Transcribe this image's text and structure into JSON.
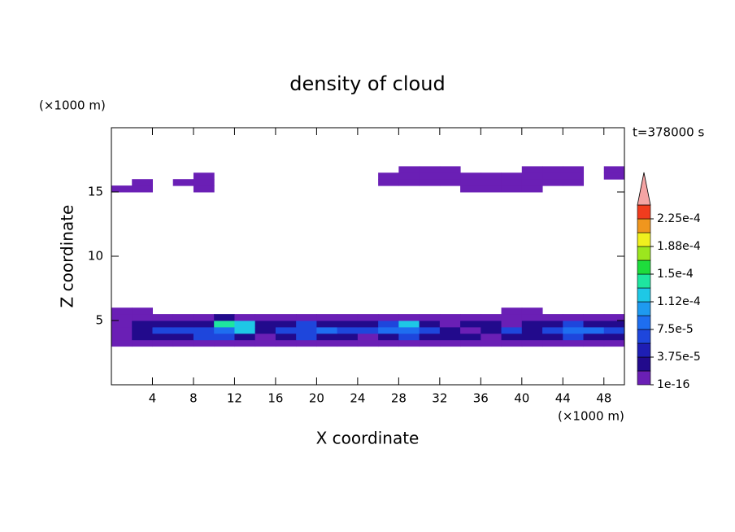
{
  "chart_data": {
    "type": "heatmap",
    "title": "density of cloud",
    "time_label": "t=378000 s",
    "x_label": "X coordinate",
    "y_label": "Z coordinate",
    "x_unit": "(×1000 m)",
    "y_unit": "(×1000 m)",
    "xlim": [
      0,
      50
    ],
    "ylim": [
      0,
      20
    ],
    "xticks": [
      4,
      8,
      12,
      16,
      20,
      24,
      28,
      32,
      36,
      40,
      44,
      48
    ],
    "yticks": [
      5,
      10,
      15
    ],
    "x_edges": [
      0,
      2,
      4,
      6,
      8,
      10,
      12,
      14,
      16,
      18,
      20,
      22,
      24,
      26,
      28,
      30,
      32,
      34,
      36,
      38,
      40,
      42,
      44,
      46,
      48,
      50
    ],
    "rows": [
      {
        "z": [
          3,
          3.5
        ],
        "values": [
          1e-05,
          1e-05,
          1e-05,
          1e-05,
          1e-05,
          1e-05,
          1e-05,
          1e-05,
          1e-05,
          1e-05,
          1e-05,
          1e-05,
          1e-05,
          1e-05,
          1e-05,
          1e-05,
          1e-05,
          1e-05,
          1e-05,
          1e-05,
          1e-05,
          1e-05,
          1e-05,
          1e-05,
          1e-05
        ]
      },
      {
        "z": [
          3.5,
          4
        ],
        "values": [
          1e-05,
          3e-05,
          3e-05,
          3e-05,
          6e-05,
          6e-05,
          3e-05,
          1e-05,
          3e-05,
          6e-05,
          3e-05,
          3e-05,
          1e-05,
          3e-05,
          6e-05,
          3e-05,
          3e-05,
          3e-05,
          1e-05,
          3e-05,
          3e-05,
          3e-05,
          6e-05,
          3e-05,
          3e-05
        ]
      },
      {
        "z": [
          4,
          4.5
        ],
        "values": [
          1e-05,
          3e-05,
          6e-05,
          6e-05,
          6e-05,
          9e-05,
          0.00012,
          3e-05,
          6e-05,
          6e-05,
          9e-05,
          6e-05,
          6e-05,
          9e-05,
          9e-05,
          6e-05,
          3e-05,
          1e-05,
          3e-05,
          6e-05,
          3e-05,
          6e-05,
          9e-05,
          9e-05,
          6e-05
        ]
      },
      {
        "z": [
          4.5,
          5
        ],
        "values": [
          1e-05,
          3e-05,
          3e-05,
          3e-05,
          3e-05,
          0.00014,
          0.00012,
          3e-05,
          3e-05,
          6e-05,
          3e-05,
          3e-05,
          3e-05,
          6e-05,
          0.00012,
          3e-05,
          1e-05,
          3e-05,
          3e-05,
          1e-05,
          3e-05,
          3e-05,
          6e-05,
          3e-05,
          3e-05
        ]
      },
      {
        "z": [
          5,
          5.5
        ],
        "values": [
          1e-05,
          1e-05,
          1e-05,
          1e-05,
          1e-05,
          3e-05,
          1e-05,
          1e-05,
          1e-05,
          1e-05,
          1e-05,
          1e-05,
          1e-05,
          1e-05,
          1e-05,
          1e-05,
          1e-05,
          1e-05,
          1e-05,
          1e-05,
          1e-05,
          1e-05,
          1e-05,
          1e-05,
          1e-05
        ]
      },
      {
        "z": [
          5.5,
          6
        ],
        "values": [
          1e-05,
          1e-05,
          null,
          null,
          null,
          null,
          null,
          null,
          null,
          null,
          null,
          null,
          null,
          null,
          null,
          null,
          null,
          null,
          null,
          1e-05,
          1e-05,
          null,
          null,
          null,
          null
        ]
      },
      {
        "z": [
          15,
          15.5
        ],
        "values": [
          1e-05,
          1e-05,
          null,
          null,
          1e-05,
          null,
          null,
          null,
          null,
          null,
          null,
          null,
          null,
          null,
          null,
          null,
          null,
          1e-05,
          1e-05,
          1e-05,
          1e-05,
          null,
          null,
          null,
          null
        ]
      },
      {
        "z": [
          15.5,
          16
        ],
        "values": [
          null,
          1e-05,
          null,
          1e-05,
          1e-05,
          null,
          null,
          null,
          null,
          null,
          null,
          null,
          null,
          1e-05,
          1e-05,
          1e-05,
          1e-05,
          1e-05,
          1e-05,
          1e-05,
          1e-05,
          1e-05,
          1e-05,
          null,
          null
        ]
      },
      {
        "z": [
          16,
          16.5
        ],
        "values": [
          null,
          null,
          null,
          null,
          1e-05,
          null,
          null,
          null,
          null,
          null,
          null,
          null,
          null,
          1e-05,
          1e-05,
          1e-05,
          1e-05,
          1e-05,
          1e-05,
          1e-05,
          1e-05,
          1e-05,
          1e-05,
          null,
          1e-05
        ]
      },
      {
        "z": [
          16.5,
          17
        ],
        "values": [
          null,
          null,
          null,
          null,
          null,
          null,
          null,
          null,
          null,
          null,
          null,
          null,
          null,
          null,
          1e-05,
          1e-05,
          1e-05,
          null,
          null,
          null,
          1e-05,
          1e-05,
          1e-05,
          null,
          1e-05
        ]
      }
    ],
    "levels": [
      1e-16,
      1.875e-05,
      3.75e-05,
      5.625e-05,
      7.5e-05,
      9.375e-05,
      0.0001125,
      0.00013125,
      0.00015,
      0.00016875,
      0.0001875,
      0.00020625,
      0.000225,
      0.00024375
    ],
    "colors": [
      "#6a1fb5",
      "#220a8c",
      "#1e1eb4",
      "#1e46dc",
      "#1e6ef0",
      "#1e9af0",
      "#1ec8e6",
      "#1ee6a0",
      "#1edc3c",
      "#9ce61e",
      "#f0f01e",
      "#f0961e",
      "#f03c1e"
    ],
    "extend_color": "#f4a4a4",
    "colorbar_ticks": [
      {
        "value": 1e-16,
        "label": "1e-16"
      },
      {
        "value": 3.75e-05,
        "label": "3.75e-5"
      },
      {
        "value": 7.5e-05,
        "label": "7.5e-5"
      },
      {
        "value": 0.0001125,
        "label": "1.12e-4"
      },
      {
        "value": 0.00015,
        "label": "1.5e-4"
      },
      {
        "value": 0.0001875,
        "label": "1.88e-4"
      },
      {
        "value": 0.000225,
        "label": "2.25e-4"
      }
    ]
  }
}
